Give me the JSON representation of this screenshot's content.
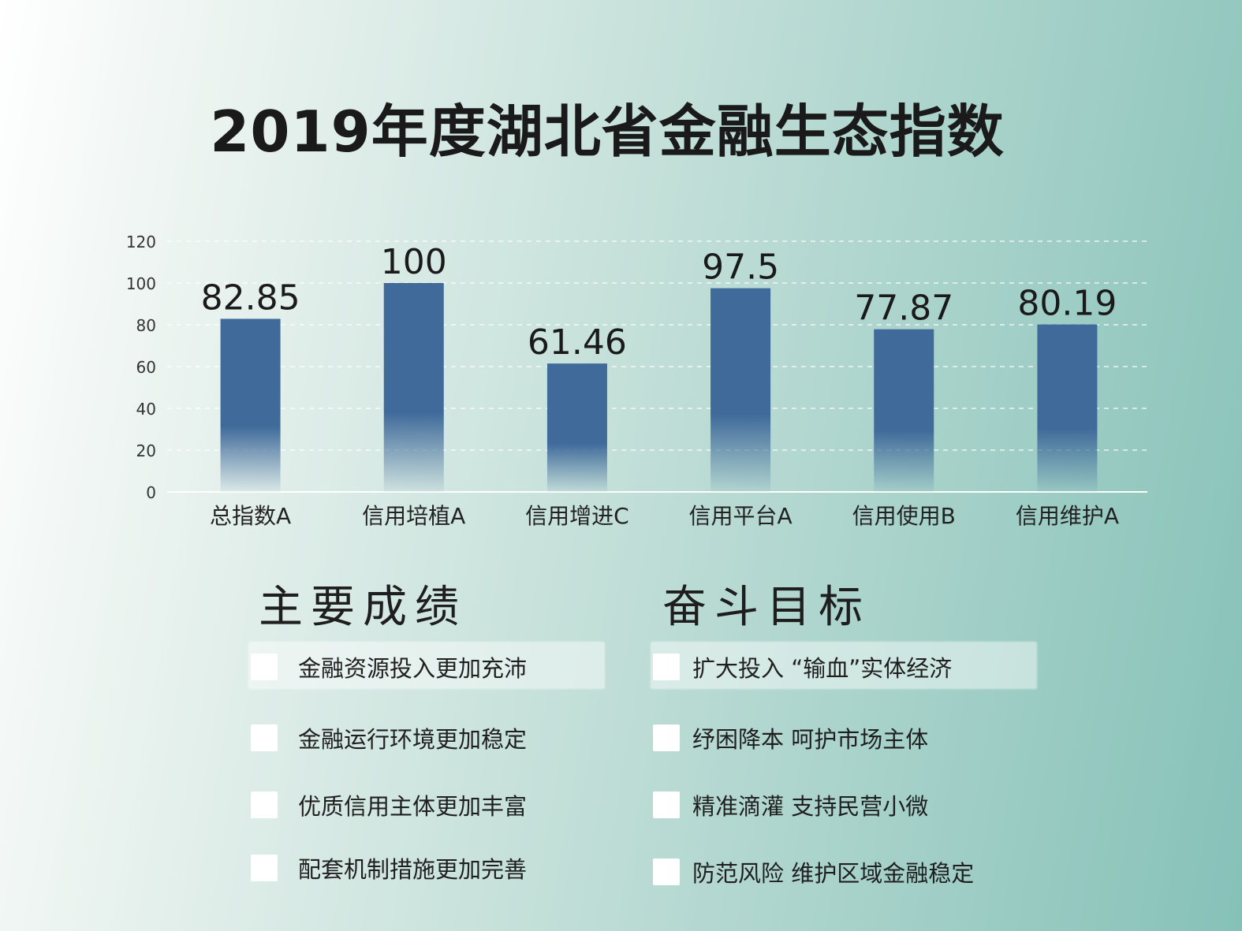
{
  "title": "2019年度湖北省金融生态指数",
  "chart_data": {
    "type": "bar",
    "categories": [
      "总指数A",
      "信用培植A",
      "信用增进C",
      "信用平台A",
      "信用使用B",
      "信用维护A"
    ],
    "values": [
      82.85,
      100,
      61.46,
      97.5,
      77.87,
      80.19
    ],
    "value_labels": [
      "82.85",
      "100",
      "61.46",
      "97.5",
      "77.87",
      "80.19"
    ],
    "y_ticks": [
      "0",
      "20",
      "40",
      "60",
      "80",
      "100",
      "120"
    ],
    "ylim": [
      0,
      120
    ],
    "grid": true,
    "bar_color": "#3f6a9a"
  },
  "sections": {
    "left_title": "主要成绩",
    "right_title": "奋斗目标",
    "left_items": [
      "金融资源投入更加充沛",
      "金融运行环境更加稳定",
      "优质信用主体更加丰富",
      "配套机制措施更加完善"
    ],
    "right_items": [
      "扩大投入 “输血”实体经济",
      "纾困降本 呵护市场主体",
      "精准滴灌 支持民营小微",
      "防范风险 维护区域金融稳定"
    ]
  }
}
